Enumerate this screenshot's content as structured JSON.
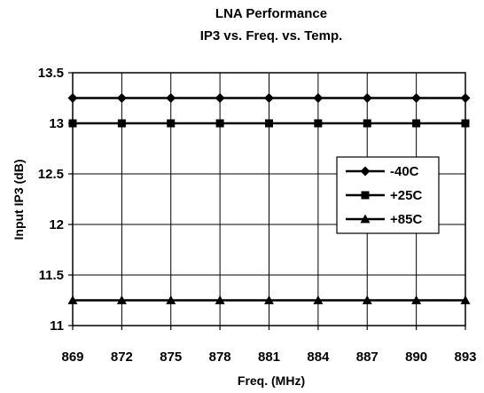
{
  "chart_data": {
    "type": "line",
    "title": "LNA Performance",
    "subtitle": "IP3 vs. Freq. vs. Temp.",
    "xlabel": "Freq. (MHz)",
    "ylabel": "Input IP3 (dB)",
    "categories": [
      "869",
      "872",
      "875",
      "878",
      "881",
      "884",
      "887",
      "890",
      "893"
    ],
    "ylim": [
      11,
      13.5
    ],
    "yticks": [
      "11",
      "11.5",
      "12",
      "12.5",
      "13",
      "13.5"
    ],
    "ytick_values": [
      11,
      11.5,
      12,
      12.5,
      13,
      13.5
    ],
    "grid": true,
    "legend_position": "right",
    "series": [
      {
        "name": "-40C",
        "marker": "diamond",
        "color": "#000000",
        "values": [
          13.25,
          13.25,
          13.25,
          13.25,
          13.25,
          13.25,
          13.25,
          13.25,
          13.25
        ]
      },
      {
        "name": "+25C",
        "marker": "square",
        "color": "#000000",
        "values": [
          13.0,
          13.0,
          13.0,
          13.0,
          13.0,
          13.0,
          13.0,
          13.0,
          13.0
        ]
      },
      {
        "name": "+85C",
        "marker": "triangle",
        "color": "#000000",
        "values": [
          11.25,
          11.25,
          11.25,
          11.25,
          11.25,
          11.25,
          11.25,
          11.25,
          11.25
        ]
      }
    ]
  }
}
